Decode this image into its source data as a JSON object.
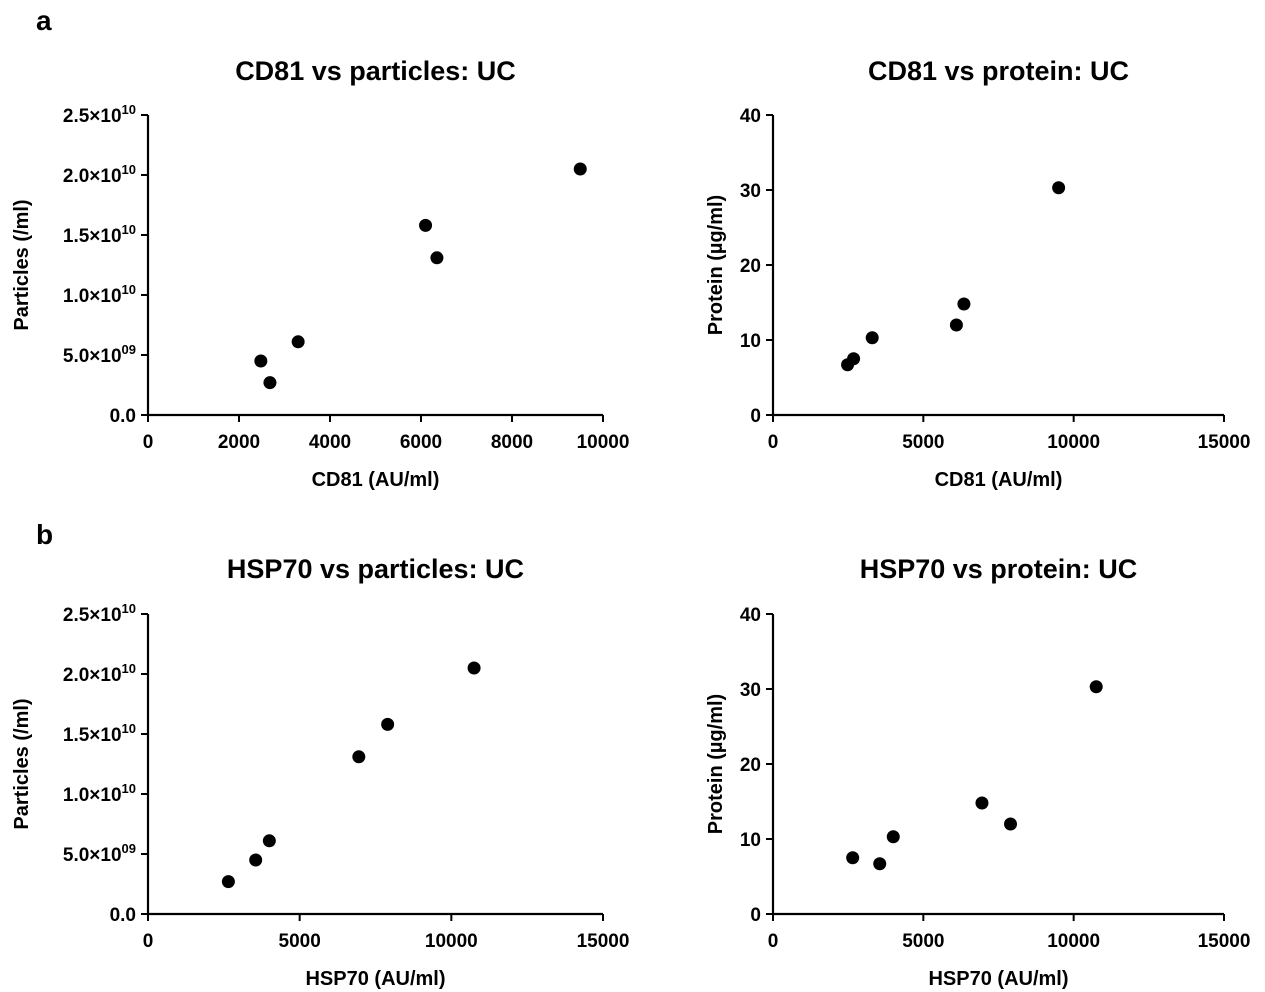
{
  "panel_labels": [
    "a",
    "b"
  ],
  "chart_data": [
    {
      "type": "scatter",
      "title": "CD81 vs particles: UC",
      "xlabel": "CD81 (AU/ml)",
      "ylabel": "Particles (/ml)",
      "xlim": [
        0,
        10000
      ],
      "ylim": [
        0,
        25000000000
      ],
      "xticks": [
        0,
        2000,
        4000,
        6000,
        8000,
        10000
      ],
      "xtick_labels": [
        "0",
        "2000",
        "4000",
        "6000",
        "8000",
        "10000"
      ],
      "yticks": [
        0,
        5000000000,
        10000000000,
        15000000000,
        20000000000,
        25000000000
      ],
      "ytick_labels": [
        {
          "mant": "0.0",
          "exp": ""
        },
        {
          "mant": "5.0×10",
          "exp": "09"
        },
        {
          "mant": "1.0×10",
          "exp": "10"
        },
        {
          "mant": "1.5×10",
          "exp": "10"
        },
        {
          "mant": "2.0×10",
          "exp": "10"
        },
        {
          "mant": "2.5×10",
          "exp": "10"
        }
      ],
      "points": [
        {
          "x": 2480,
          "y": 4500000000
        },
        {
          "x": 2680,
          "y": 2700000000
        },
        {
          "x": 3300,
          "y": 6100000000
        },
        {
          "x": 6100,
          "y": 15800000000
        },
        {
          "x": 6350,
          "y": 13100000000
        },
        {
          "x": 9500,
          "y": 20500000000
        }
      ]
    },
    {
      "type": "scatter",
      "title": "CD81 vs protein: UC",
      "xlabel": "CD81 (AU/ml)",
      "ylabel": "Protein (µg/ml)",
      "xlim": [
        0,
        15000
      ],
      "ylim": [
        0,
        40
      ],
      "xticks": [
        0,
        5000,
        10000,
        15000
      ],
      "xtick_labels": [
        "0",
        "5000",
        "10000",
        "15000"
      ],
      "yticks": [
        0,
        10,
        20,
        30,
        40
      ],
      "ytick_labels": [
        {
          "mant": "0",
          "exp": ""
        },
        {
          "mant": "10",
          "exp": ""
        },
        {
          "mant": "20",
          "exp": ""
        },
        {
          "mant": "30",
          "exp": ""
        },
        {
          "mant": "40",
          "exp": ""
        }
      ],
      "points": [
        {
          "x": 2480,
          "y": 6.7
        },
        {
          "x": 2680,
          "y": 7.5
        },
        {
          "x": 3300,
          "y": 10.3
        },
        {
          "x": 6100,
          "y": 12.0
        },
        {
          "x": 6350,
          "y": 14.8
        },
        {
          "x": 9500,
          "y": 30.3
        }
      ]
    },
    {
      "type": "scatter",
      "title": "HSP70 vs particles: UC",
      "xlabel": "HSP70 (AU/ml)",
      "ylabel": "Particles (/ml)",
      "xlim": [
        0,
        15000
      ],
      "ylim": [
        0,
        25000000000
      ],
      "xticks": [
        0,
        5000,
        10000,
        15000
      ],
      "xtick_labels": [
        "0",
        "5000",
        "10000",
        "15000"
      ],
      "yticks": [
        0,
        5000000000,
        10000000000,
        15000000000,
        20000000000,
        25000000000
      ],
      "ytick_labels": [
        {
          "mant": "0.0",
          "exp": ""
        },
        {
          "mant": "5.0×10",
          "exp": "09"
        },
        {
          "mant": "1.0×10",
          "exp": "10"
        },
        {
          "mant": "1.5×10",
          "exp": "10"
        },
        {
          "mant": "2.0×10",
          "exp": "10"
        },
        {
          "mant": "2.5×10",
          "exp": "10"
        }
      ],
      "points": [
        {
          "x": 2650,
          "y": 2700000000
        },
        {
          "x": 3550,
          "y": 4500000000
        },
        {
          "x": 4000,
          "y": 6100000000
        },
        {
          "x": 6950,
          "y": 13100000000
        },
        {
          "x": 7900,
          "y": 15800000000
        },
        {
          "x": 10750,
          "y": 20500000000
        }
      ]
    },
    {
      "type": "scatter",
      "title": "HSP70 vs protein: UC",
      "xlabel": "HSP70 (AU/ml)",
      "ylabel": "Protein (µg/ml)",
      "xlim": [
        0,
        15000
      ],
      "ylim": [
        0,
        40
      ],
      "xticks": [
        0,
        5000,
        10000,
        15000
      ],
      "xtick_labels": [
        "0",
        "5000",
        "10000",
        "15000"
      ],
      "yticks": [
        0,
        10,
        20,
        30,
        40
      ],
      "ytick_labels": [
        {
          "mant": "0",
          "exp": ""
        },
        {
          "mant": "10",
          "exp": ""
        },
        {
          "mant": "20",
          "exp": ""
        },
        {
          "mant": "30",
          "exp": ""
        },
        {
          "mant": "40",
          "exp": ""
        }
      ],
      "points": [
        {
          "x": 2650,
          "y": 7.5
        },
        {
          "x": 3550,
          "y": 6.7
        },
        {
          "x": 4000,
          "y": 10.3
        },
        {
          "x": 6950,
          "y": 14.8
        },
        {
          "x": 7900,
          "y": 12.0
        },
        {
          "x": 10750,
          "y": 30.3
        }
      ]
    }
  ]
}
